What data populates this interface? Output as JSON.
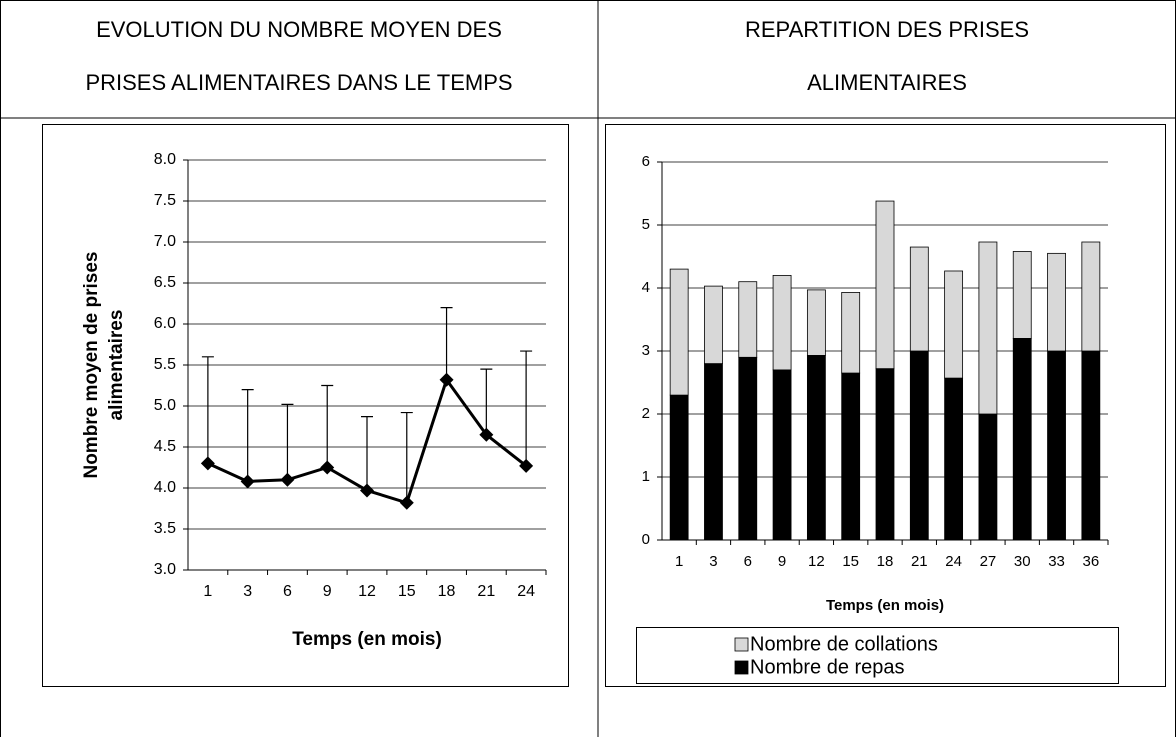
{
  "headers": [
    [
      "EVOLUTION DU NOMBRE MOYEN DES",
      "PRISES ALIMENTAIRES DANS LE TEMPS"
    ],
    [
      "REPARTITION DES PRISES",
      "ALIMENTAIRES"
    ]
  ],
  "chart_data": [
    {
      "type": "line",
      "ylabel": [
        "Nombre moyen de prises",
        "alimentaires"
      ],
      "xlabel": "Temps (en mois)",
      "categories": [
        "1",
        "3",
        "6",
        "9",
        "12",
        "15",
        "18",
        "21",
        "24"
      ],
      "series": [
        {
          "color": "#000000",
          "values": [
            4.3,
            4.08,
            4.1,
            4.25,
            3.97,
            3.82,
            5.32,
            4.65,
            4.27
          ],
          "errors": [
            1.3,
            1.12,
            0.92,
            1.0,
            0.9,
            1.1,
            0.88,
            0.8,
            1.4
          ]
        }
      ],
      "ylim": [
        3,
        8
      ],
      "yticks": [
        {
          "value": 3,
          "label": "3.0"
        },
        {
          "value": 3.5,
          "label": "3.5"
        },
        {
          "value": 4,
          "label": "4.0"
        },
        {
          "value": 4.5,
          "label": "4.5"
        },
        {
          "value": 5,
          "label": "5.0"
        },
        {
          "value": 5.5,
          "label": "5.5"
        },
        {
          "value": 6,
          "label": "6.0"
        },
        {
          "value": 6.5,
          "label": "6.5"
        },
        {
          "value": 7,
          "label": "7.0"
        },
        {
          "value": 7.5,
          "label": "7.5"
        },
        {
          "value": 8,
          "label": "8.0"
        }
      ],
      "grid": true
    },
    {
      "type": "stacked_bar",
      "xlabel": "Temps (en mois)",
      "categories": [
        "1",
        "3",
        "6",
        "9",
        "12",
        "15",
        "18",
        "21",
        "24",
        "27",
        "30",
        "33",
        "36"
      ],
      "series": [
        {
          "name": "Nombre de repas",
          "color": "#000000",
          "values": [
            2.3,
            2.8,
            2.9,
            2.7,
            2.93,
            2.65,
            2.72,
            3.0,
            2.57,
            2.0,
            3.2,
            3.0,
            3.0
          ]
        },
        {
          "name": "Nombre de collations",
          "color": "#d8d8d8",
          "values": [
            2.0,
            1.23,
            1.2,
            1.5,
            1.04,
            1.28,
            2.66,
            1.65,
            1.7,
            2.73,
            1.38,
            1.55,
            1.73
          ]
        }
      ],
      "ylim": [
        0,
        6
      ],
      "yticks": [
        0,
        1,
        2,
        3,
        4,
        5,
        6
      ],
      "grid": true
    }
  ]
}
